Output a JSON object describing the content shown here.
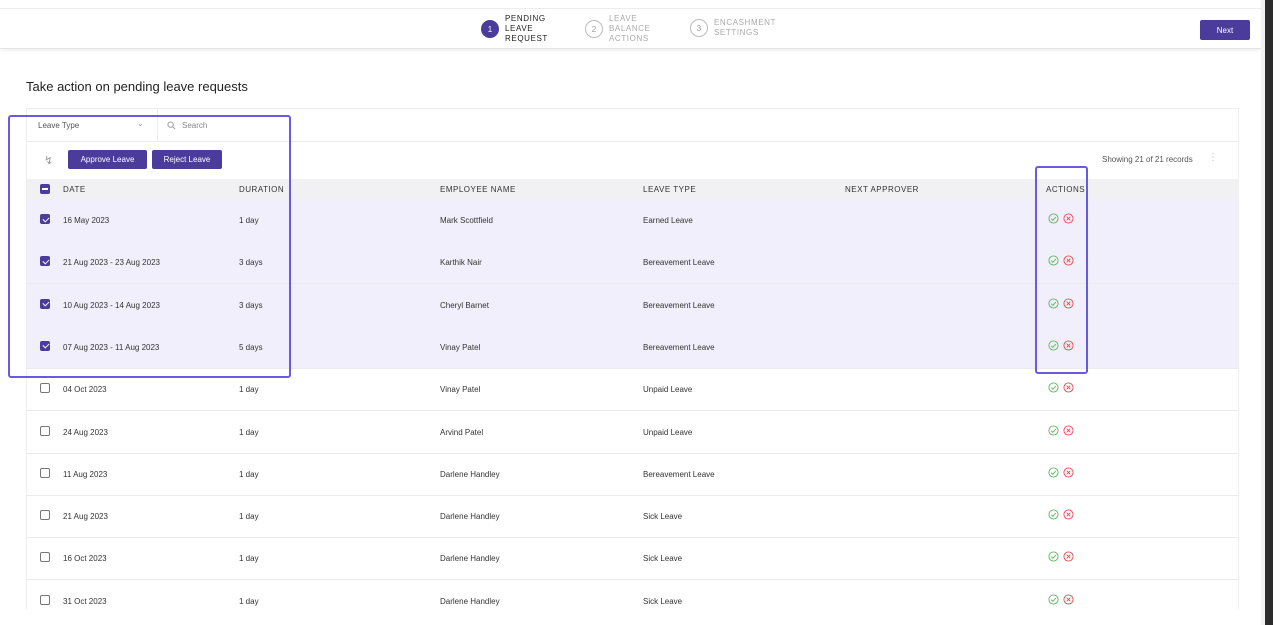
{
  "stepper": {
    "steps": [
      {
        "num": "1",
        "label_lines": [
          "PENDING",
          "LEAVE",
          "REQUEST"
        ]
      },
      {
        "num": "2",
        "label_lines": [
          "LEAVE",
          "BALANCE",
          "ACTIONS"
        ]
      },
      {
        "num": "3",
        "label_lines": [
          "ENCASHMENT",
          "SETTINGS"
        ]
      }
    ],
    "active_step": 1
  },
  "header": {
    "next_label": "Next"
  },
  "page": {
    "title": "Take action on pending leave requests"
  },
  "filters": {
    "leave_type_placeholder": "Leave Type",
    "search_placeholder": "Search"
  },
  "toolbar": {
    "approve_label": "Approve Leave",
    "reject_label": "Reject Leave",
    "showing_text": "Showing 21 of 21 records"
  },
  "table": {
    "columns": [
      "DATE",
      "DURATION",
      "EMPLOYEE NAME",
      "LEAVE TYPE",
      "NEXT APPROVER",
      "ACTIONS"
    ],
    "rows": [
      {
        "selected": true,
        "date": "16 May 2023",
        "duration": "1 day",
        "employee": "Mark Scottfield",
        "leave_type": "Earned Leave",
        "next_approver": ""
      },
      {
        "selected": true,
        "date": "21 Aug 2023 - 23 Aug 2023",
        "duration": "3 days",
        "employee": "Karthik Nair",
        "leave_type": "Bereavement Leave",
        "next_approver": ""
      },
      {
        "selected": true,
        "date": "10 Aug 2023 - 14 Aug 2023",
        "duration": "3 days",
        "employee": "Cheryl Barnet",
        "leave_type": "Bereavement Leave",
        "next_approver": ""
      },
      {
        "selected": true,
        "date": "07 Aug 2023 - 11 Aug 2023",
        "duration": "5 days",
        "employee": "Vinay Patel",
        "leave_type": "Bereavement Leave",
        "next_approver": ""
      },
      {
        "selected": false,
        "date": "04 Oct 2023",
        "duration": "1 day",
        "employee": "Vinay Patel",
        "leave_type": "Unpaid Leave",
        "next_approver": ""
      },
      {
        "selected": false,
        "date": "24 Aug 2023",
        "duration": "1 day",
        "employee": "Arvind Patel",
        "leave_type": "Unpaid Leave",
        "next_approver": ""
      },
      {
        "selected": false,
        "date": "11 Aug 2023",
        "duration": "1 day",
        "employee": "Darlene Handley",
        "leave_type": "Bereavement Leave",
        "next_approver": ""
      },
      {
        "selected": false,
        "date": "21 Aug 2023",
        "duration": "1 day",
        "employee": "Darlene Handley",
        "leave_type": "Sick Leave",
        "next_approver": ""
      },
      {
        "selected": false,
        "date": "16 Oct 2023",
        "duration": "1 day",
        "employee": "Darlene Handley",
        "leave_type": "Sick Leave",
        "next_approver": ""
      },
      {
        "selected": false,
        "date": "31 Oct 2023",
        "duration": "1 day",
        "employee": "Darlene Handley",
        "leave_type": "Sick Leave",
        "next_approver": ""
      }
    ]
  },
  "colors": {
    "accent": "#4b3b9b",
    "selected_row": "#f1effb",
    "highlight": "#6a5ae0",
    "approve": "#5cb85c",
    "reject": "#e05050"
  },
  "icons": {
    "approve": "check-circle-icon",
    "reject": "x-circle-icon"
  }
}
